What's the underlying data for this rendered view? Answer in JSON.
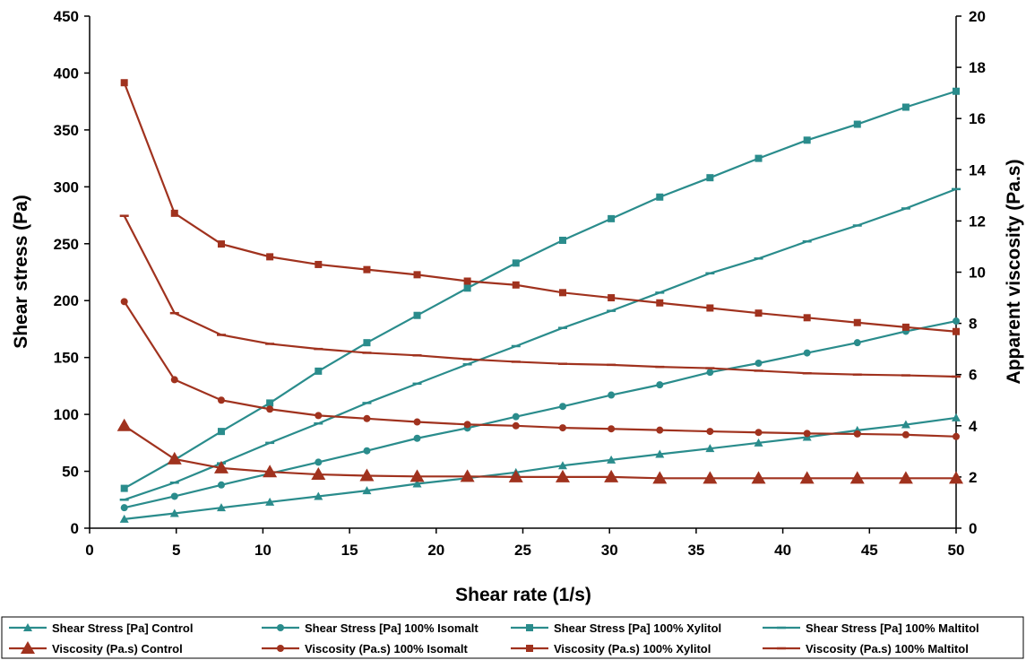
{
  "chart_data": {
    "type": "line",
    "xlabel": "Shear rate (1/s)",
    "ylabel": "Shear stress (Pa)",
    "y2label": "Apparent viscosity (Pa.s)",
    "xlim": [
      0,
      50
    ],
    "ylim": [
      0,
      450
    ],
    "y2lim": [
      0,
      20
    ],
    "xticks": [
      0,
      5,
      10,
      15,
      20,
      25,
      30,
      35,
      40,
      45,
      50
    ],
    "yticks": [
      0,
      50,
      100,
      150,
      200,
      250,
      300,
      350,
      400,
      450
    ],
    "y2ticks": [
      0,
      2,
      4,
      6,
      8,
      10,
      12,
      14,
      16,
      18,
      20
    ],
    "grid": false,
    "legend_position": "bottom",
    "x": [
      2,
      4.9,
      7.6,
      10.4,
      13.2,
      16,
      18.9,
      21.8,
      24.6,
      27.3,
      30.1,
      32.9,
      35.8,
      38.6,
      41.4,
      44.3,
      47.1,
      50
    ],
    "colors": {
      "teal": "#2A8C8C",
      "red": "#A0321E"
    },
    "series": [
      {
        "name": "Shear Stress [Pa]  Control",
        "axis": "left",
        "color": "teal",
        "marker": "triangle",
        "values": [
          8,
          13,
          18,
          23,
          28,
          33,
          39,
          44,
          49,
          55,
          60,
          65,
          70,
          75,
          80,
          86,
          91,
          97
        ]
      },
      {
        "name": "Shear Stress [Pa] 100% Isomalt",
        "axis": "left",
        "color": "teal",
        "marker": "circle",
        "values": [
          18,
          28,
          38,
          48,
          58,
          68,
          79,
          88,
          98,
          107,
          117,
          126,
          137,
          145,
          154,
          163,
          173,
          182
        ]
      },
      {
        "name": "Shear Stress [Pa]  100% Xylitol",
        "axis": "left",
        "color": "teal",
        "marker": "square",
        "values": [
          35,
          60,
          85,
          110,
          138,
          163,
          187,
          211,
          233,
          253,
          272,
          291,
          308,
          325,
          341,
          355,
          370,
          384
        ]
      },
      {
        "name": "Shear Stress [Pa]  100% Maltitol",
        "axis": "left",
        "color": "teal",
        "marker": "dash",
        "values": [
          25,
          40,
          57,
          75,
          92,
          110,
          127,
          144,
          160,
          176,
          191,
          207,
          224,
          237,
          252,
          266,
          281,
          298
        ]
      },
      {
        "name": "Viscosity (Pa.s)  Control",
        "axis": "right",
        "color": "red",
        "marker": "triangle-large",
        "values": [
          4.0,
          2.7,
          2.35,
          2.2,
          2.1,
          2.05,
          2.02,
          2.02,
          2.0,
          2.0,
          2.0,
          1.95,
          1.95,
          1.95,
          1.95,
          1.95,
          1.95,
          1.95
        ]
      },
      {
        "name": "Viscosity (Pa.s) 100% Isomalt",
        "axis": "right",
        "color": "red",
        "marker": "circle",
        "values": [
          8.85,
          5.8,
          5.0,
          4.65,
          4.4,
          4.28,
          4.15,
          4.05,
          4.0,
          3.92,
          3.88,
          3.83,
          3.78,
          3.74,
          3.7,
          3.68,
          3.65,
          3.58
        ]
      },
      {
        "name": "Viscosity (Pa.s)  100% Xylitol",
        "axis": "right",
        "color": "red",
        "marker": "square",
        "values": [
          17.4,
          12.3,
          11.1,
          10.6,
          10.3,
          10.1,
          9.9,
          9.65,
          9.5,
          9.2,
          9.0,
          8.8,
          8.6,
          8.4,
          8.22,
          8.03,
          7.85,
          7.68
        ]
      },
      {
        "name": "Viscosity (Pa.s)  100% Maltitol",
        "axis": "right",
        "color": "red",
        "marker": "dash",
        "values": [
          12.2,
          8.4,
          7.55,
          7.2,
          7.0,
          6.85,
          6.75,
          6.6,
          6.5,
          6.42,
          6.38,
          6.3,
          6.25,
          6.15,
          6.05,
          6.0,
          5.97,
          5.92
        ]
      }
    ]
  }
}
